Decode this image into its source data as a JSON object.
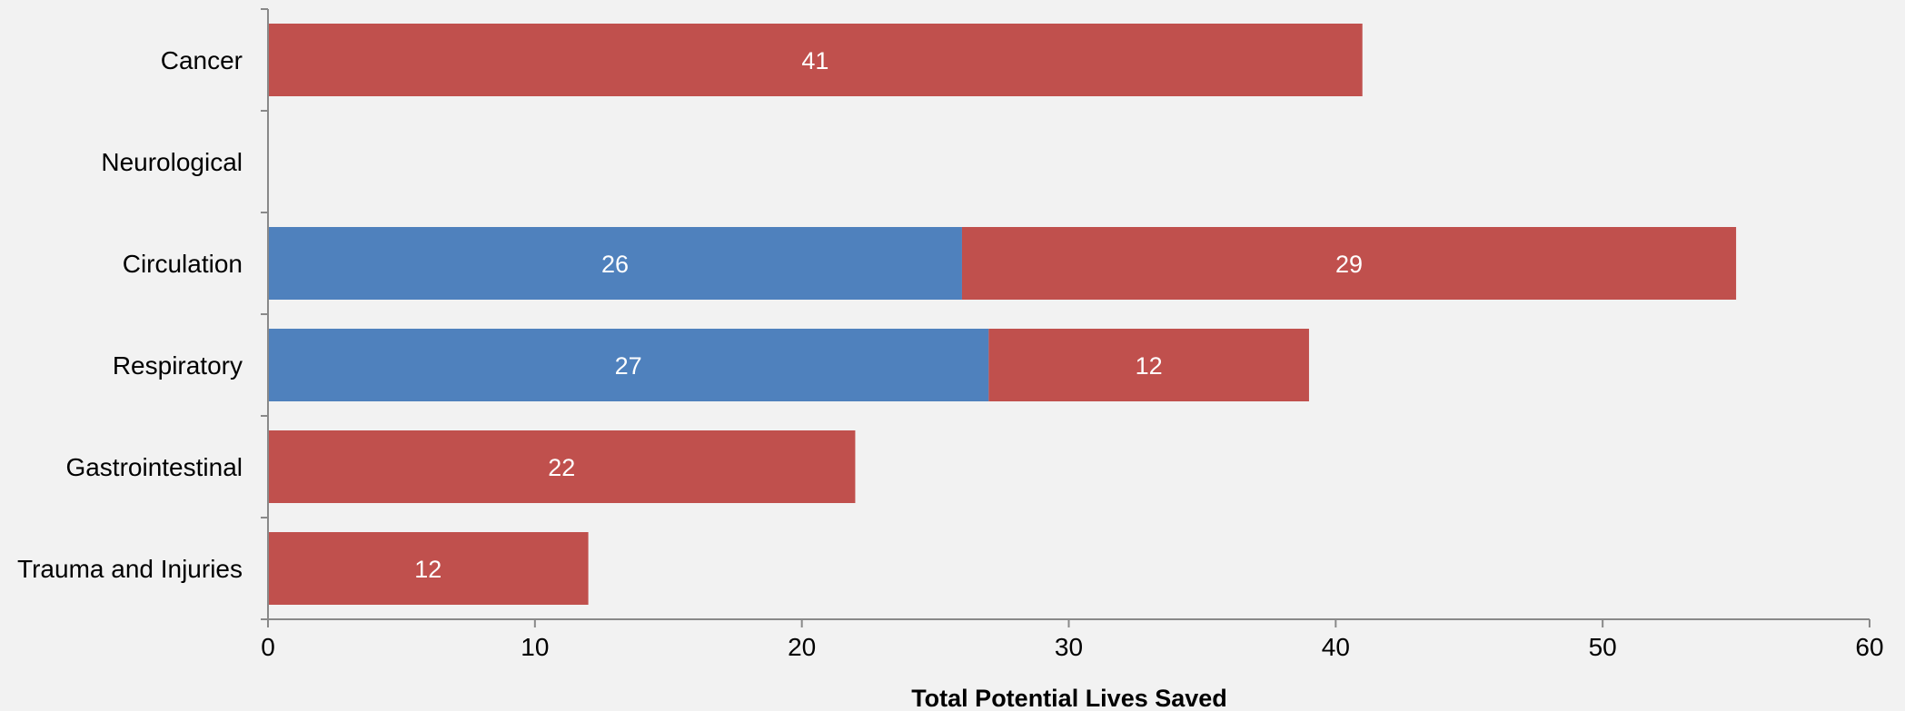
{
  "chart_data": {
    "type": "bar",
    "orientation": "horizontal",
    "stacked": true,
    "title": "",
    "xlabel": "Total Potential Lives Saved",
    "ylabel": "",
    "xlim": [
      0,
      60
    ],
    "xticks": [
      0,
      10,
      20,
      30,
      40,
      50,
      60
    ],
    "grid": false,
    "legend": "none",
    "categories": [
      "Cancer",
      "Neurological",
      "Circulation",
      "Respiratory",
      "Gastrointestinal",
      "Trauma and Injuries"
    ],
    "series": [
      {
        "color": "#4f81bd",
        "values": [
          0,
          0,
          26,
          27,
          0,
          0
        ]
      },
      {
        "color": "#c0504d",
        "values": [
          41,
          0,
          29,
          12,
          22,
          12
        ]
      }
    ]
  }
}
